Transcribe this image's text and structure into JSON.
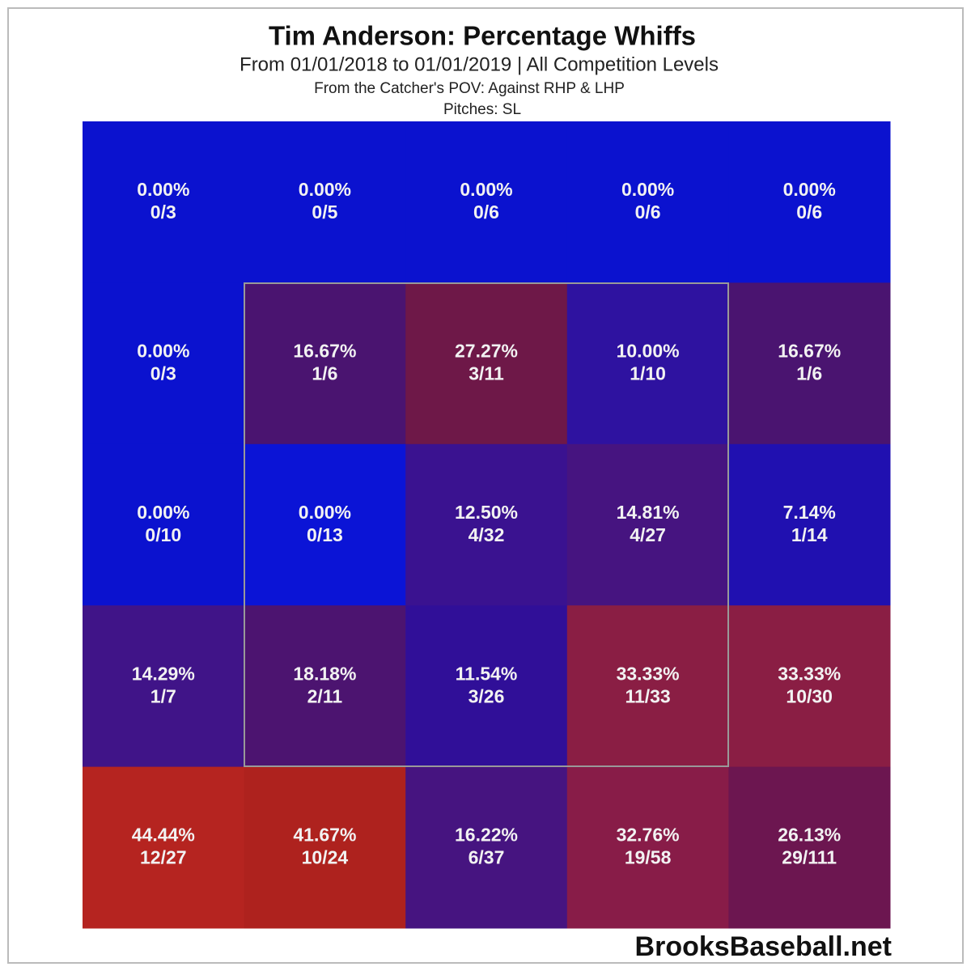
{
  "chart_data": {
    "type": "heatmap",
    "title": "Tim Anderson: Percentage Whiffs",
    "subtitle": "From 01/01/2018 to 01/01/2019 | All Competition Levels",
    "subtitle2": "From the Catcher's POV:  Against RHP & LHP",
    "subtitle3": "Pitches:  SL",
    "source": "BrooksBaseball.net",
    "values": [
      [
        0,
        0,
        0,
        0,
        0
      ],
      [
        0,
        16.67,
        27.27,
        10,
        16.67
      ],
      [
        0,
        0,
        12.5,
        14.81,
        7.14
      ],
      [
        14.29,
        18.18,
        11.54,
        33.33,
        33.33
      ],
      [
        44.44,
        41.67,
        16.22,
        32.76,
        26.13
      ]
    ],
    "value_labels": [
      [
        "0.00%",
        "0.00%",
        "0.00%",
        "0.00%",
        "0.00%"
      ],
      [
        "0.00%",
        "16.67%",
        "27.27%",
        "10.00%",
        "16.67%"
      ],
      [
        "0.00%",
        "0.00%",
        "12.50%",
        "14.81%",
        "7.14%"
      ],
      [
        "14.29%",
        "18.18%",
        "11.54%",
        "33.33%",
        "33.33%"
      ],
      [
        "44.44%",
        "41.67%",
        "16.22%",
        "32.76%",
        "26.13%"
      ]
    ],
    "counts": [
      [
        "0/3",
        "0/5",
        "0/6",
        "0/6",
        "0/6"
      ],
      [
        "0/3",
        "1/6",
        "3/11",
        "1/10",
        "1/6"
      ],
      [
        "0/10",
        "0/13",
        "4/32",
        "4/27",
        "1/14"
      ],
      [
        "1/7",
        "2/11",
        "3/26",
        "11/33",
        "10/30"
      ],
      [
        "12/27",
        "10/24",
        "6/37",
        "19/58",
        "29/111"
      ]
    ],
    "colors": [
      [
        "#0b12cf",
        "#0b12cf",
        "#0b12cf",
        "#0b12cf",
        "#0b12cf"
      ],
      [
        "#0b12cf",
        "#4a1470",
        "#6e1848",
        "#2e12a0",
        "#4a1470"
      ],
      [
        "#0b12cf",
        "#0b14d6",
        "#3a1290",
        "#461480",
        "#2010b0"
      ],
      [
        "#401488",
        "#4c1470",
        "#300f98",
        "#8a1e44",
        "#8a1e44"
      ],
      [
        "#b52420",
        "#ae221e",
        "#461480",
        "#881c48",
        "#6c1650"
      ]
    ]
  }
}
